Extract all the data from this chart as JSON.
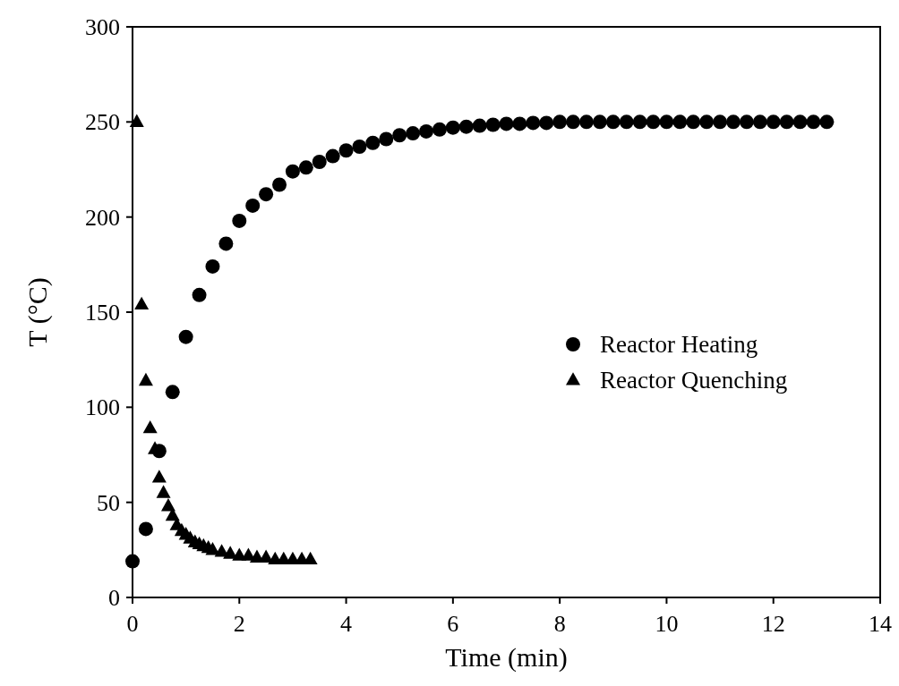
{
  "chart_data": {
    "type": "scatter",
    "xlabel": "Time (min)",
    "ylabel": "T (°C)",
    "xlim": [
      0,
      14
    ],
    "xticks": [
      0,
      2,
      4,
      6,
      8,
      10,
      12,
      14
    ],
    "ylim": [
      0,
      300
    ],
    "yticks": [
      0,
      50,
      100,
      150,
      200,
      250,
      300
    ],
    "grid": false,
    "legend": "right",
    "series": [
      {
        "name": "Reactor Heating",
        "color": "#000000",
        "marker": "circle",
        "x": [
          0,
          0.25,
          0.5,
          0.75,
          1,
          1.25,
          1.5,
          1.75,
          2,
          2.25,
          2.5,
          2.75,
          3,
          3.25,
          3.5,
          3.75,
          4,
          4.25,
          4.5,
          4.75,
          5,
          5.25,
          5.5,
          5.75,
          6,
          6.25,
          6.5,
          6.75,
          7,
          7.25,
          7.5,
          7.75,
          8,
          8.25,
          8.5,
          8.75,
          9,
          9.25,
          9.5,
          9.75,
          10,
          10.25,
          10.5,
          10.75,
          11,
          11.25,
          11.5,
          11.75,
          12,
          12.25,
          12.5,
          12.75,
          13
        ],
        "values": [
          19,
          36,
          77,
          108,
          137,
          159,
          174,
          186,
          198,
          206,
          212,
          217,
          224,
          226,
          229,
          232,
          235,
          237,
          239,
          241,
          243,
          244,
          245,
          246,
          247,
          247.5,
          248,
          248.5,
          249,
          249,
          249.5,
          249.5,
          250,
          250,
          250,
          250,
          250,
          250,
          250,
          250,
          250,
          250,
          250,
          250,
          250,
          250,
          250,
          250,
          250,
          250,
          250,
          250,
          250
        ]
      },
      {
        "name": "Reactor Quenching",
        "color": "#000000",
        "marker": "triangle",
        "x": [
          0.08,
          0.17,
          0.25,
          0.33,
          0.42,
          0.5,
          0.58,
          0.67,
          0.75,
          0.83,
          0.92,
          1.0,
          1.08,
          1.17,
          1.25,
          1.33,
          1.42,
          1.5,
          1.67,
          1.83,
          2.0,
          2.17,
          2.33,
          2.5,
          2.67,
          2.83,
          3.0,
          3.17,
          3.33
        ],
        "values": [
          250,
          154,
          114,
          89,
          78,
          63,
          55,
          48,
          43,
          38,
          35,
          33,
          31,
          29,
          28,
          27,
          26,
          25,
          24,
          23,
          22,
          22,
          21,
          21,
          20,
          20,
          20,
          20,
          20
        ]
      }
    ]
  }
}
